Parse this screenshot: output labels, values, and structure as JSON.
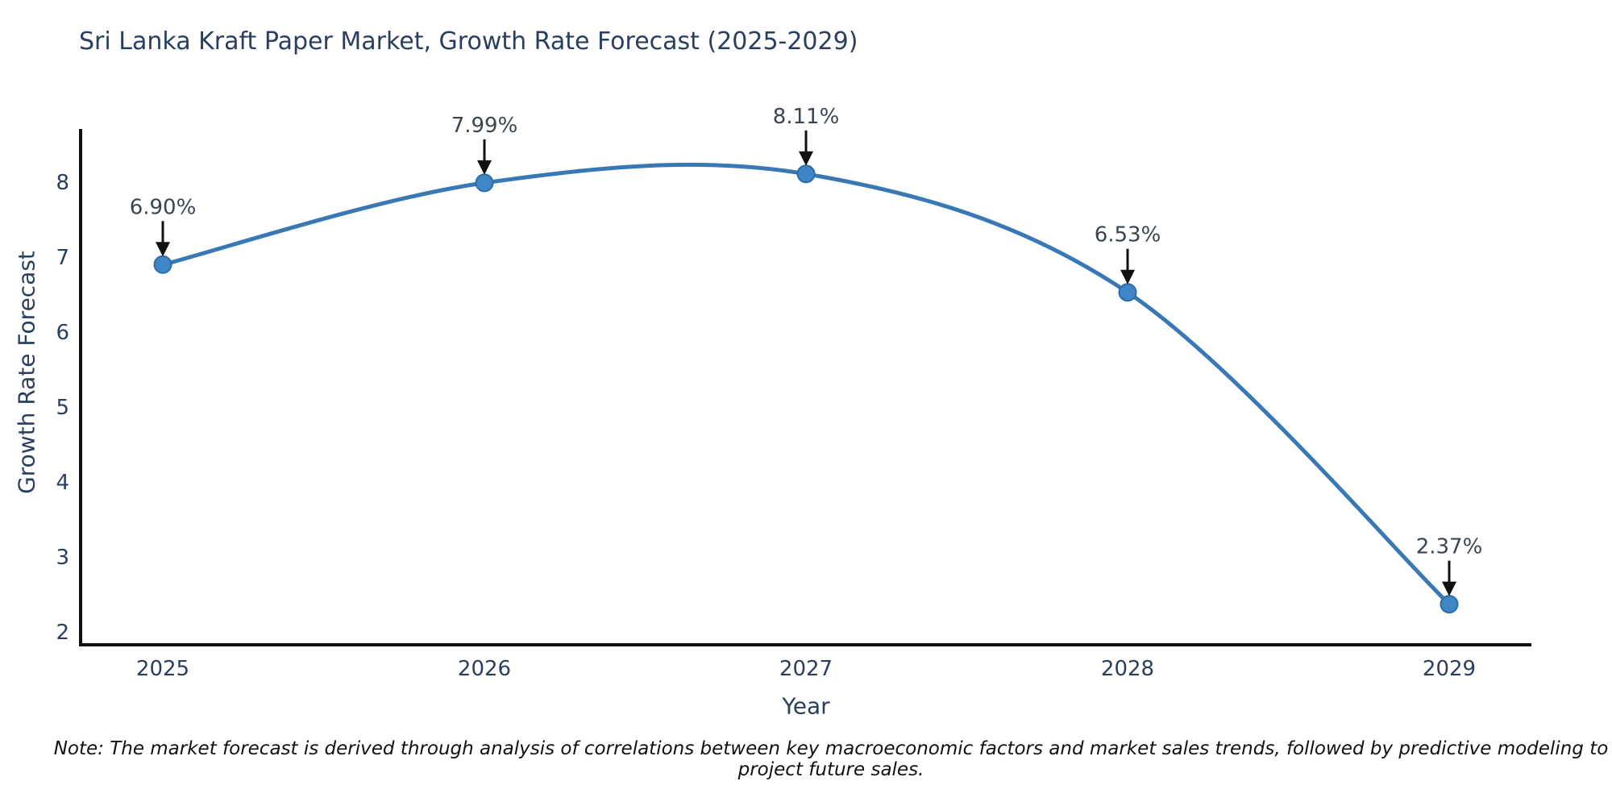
{
  "header": {
    "title": "Sri Lanka Kraft Paper Market, Growth Rate Forecast (2025-2029)"
  },
  "footer": {
    "note": "Note: The market forecast is derived through analysis of correlations between key macroeconomic factors and market sales trends, followed by predictive modeling to project future sales."
  },
  "chart_data": {
    "type": "line",
    "line_shape": "spline",
    "title": "Sri Lanka Kraft Paper Market, Growth Rate Forecast (2025-2029)",
    "xlabel": "Year",
    "ylabel": "Growth Rate Forecast",
    "categories": [
      "2025",
      "2026",
      "2027",
      "2028",
      "2029"
    ],
    "series": [
      {
        "name": "Growth Rate Forecast",
        "values": [
          6.9,
          7.99,
          8.11,
          6.53,
          2.37
        ]
      }
    ],
    "point_labels": [
      "6.90%",
      "7.99%",
      "8.11%",
      "6.53%",
      "2.37%"
    ],
    "y_ticks": [
      2,
      3,
      4,
      5,
      6,
      7,
      8
    ],
    "ylim": [
      1.83,
      8.7
    ],
    "grid": false,
    "legend_position": "none",
    "annotation_style": "value label with downward black arrow above each marker",
    "colors": {
      "line": "#3878b4",
      "marker_fill": "#3f86c6",
      "marker_edge": "#2e6da4",
      "axis": "#111111",
      "tick_text": "#2a3f5f",
      "title_text": "#2a3f5f",
      "annotation_text": "#3a4552",
      "arrow": "#111111",
      "background": "#ffffff"
    }
  }
}
